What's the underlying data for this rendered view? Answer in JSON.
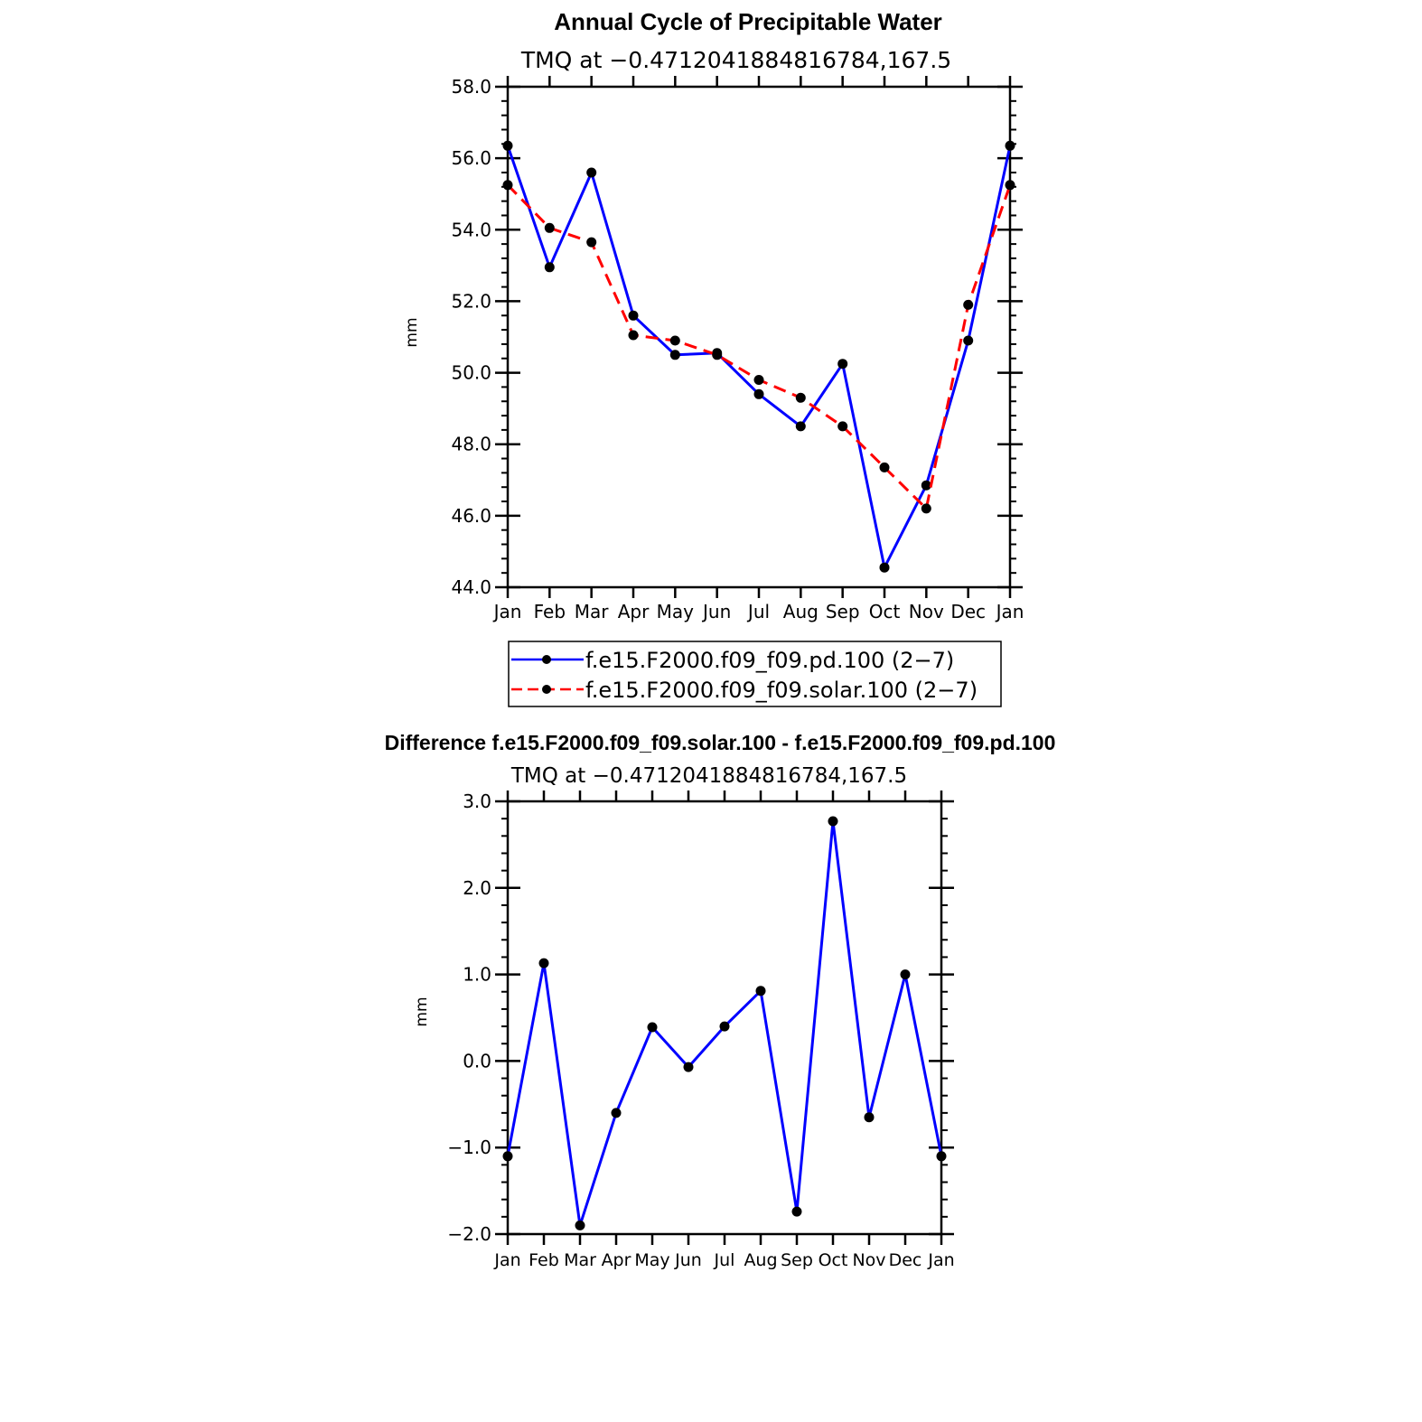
{
  "chart_data": [
    {
      "type": "line",
      "title": "Annual Cycle of Precipitable Water",
      "subtitle": "TMQ at −0.4712041884816784,167.5",
      "xlabel": "",
      "ylabel": "mm",
      "categories": [
        "Jan",
        "Feb",
        "Mar",
        "Apr",
        "May",
        "Jun",
        "Jul",
        "Aug",
        "Sep",
        "Oct",
        "Nov",
        "Dec",
        "Jan"
      ],
      "ylim": [
        44.0,
        58.0
      ],
      "yticks": [
        "44.0",
        "46.0",
        "48.0",
        "50.0",
        "52.0",
        "54.0",
        "56.0",
        "58.0"
      ],
      "grid": false,
      "legend_position": "bottom",
      "series": [
        {
          "name": "f.e15.F2000.f09_f09.pd.100 (2−7)",
          "color": "#0000ff",
          "dash": "solid",
          "values": [
            56.35,
            52.95,
            55.6,
            51.6,
            50.5,
            50.55,
            49.4,
            48.5,
            50.25,
            44.55,
            46.85,
            50.9,
            56.35
          ]
        },
        {
          "name": "f.e15.F2000.f09_f09.solar.100 (2−7)",
          "color": "#ff0000",
          "dash": "dashed",
          "values": [
            55.25,
            54.05,
            53.65,
            51.05,
            50.9,
            50.5,
            49.8,
            49.3,
            48.5,
            47.35,
            46.2,
            51.9,
            55.25
          ]
        }
      ]
    },
    {
      "type": "line",
      "title": "Difference f.e15.F2000.f09_f09.solar.100 - f.e15.F2000.f09_f09.pd.100",
      "subtitle": "TMQ at −0.4712041884816784,167.5",
      "xlabel": "",
      "ylabel": "mm",
      "categories": [
        "Jan",
        "Feb",
        "Mar",
        "Apr",
        "May",
        "Jun",
        "Jul",
        "Aug",
        "Sep",
        "Oct",
        "Nov",
        "Dec",
        "Jan"
      ],
      "ylim": [
        -2.0,
        3.0
      ],
      "yticks": [
        "−2.0",
        "−1.0",
        "0.0",
        "1.0",
        "2.0",
        "3.0"
      ],
      "grid": false,
      "series": [
        {
          "color": "#0000ff",
          "dash": "solid",
          "values": [
            -1.1,
            1.13,
            -1.9,
            -0.6,
            0.39,
            -0.07,
            0.4,
            0.81,
            -1.74,
            2.77,
            -0.65,
            1.0,
            -1.1
          ]
        }
      ]
    }
  ]
}
